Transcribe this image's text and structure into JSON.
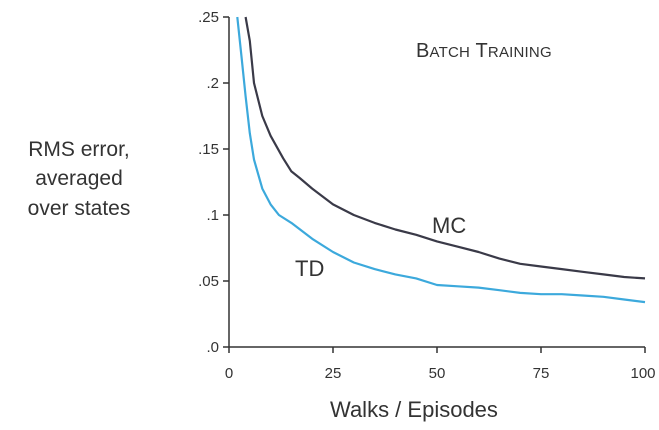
{
  "chart_data": {
    "type": "line",
    "title": "BATCH TRAINING",
    "xlabel": "Walks / Episodes",
    "ylabel_lines": [
      "RMS error,",
      "averaged",
      "over states"
    ],
    "xlim": [
      0,
      100
    ],
    "ylim": [
      0,
      0.25
    ],
    "xticks": [
      0,
      25,
      50,
      75,
      100
    ],
    "xtick_labels": [
      "0",
      "25",
      "50",
      "75",
      "100"
    ],
    "yticks": [
      0,
      0.05,
      0.1,
      0.15,
      0.2,
      0.25
    ],
    "ytick_labels": [
      ".0",
      ".05",
      ".1",
      ".15",
      ".2",
      ".25"
    ],
    "grid": false,
    "legend": "none (series labeled directly on chart)",
    "series": [
      {
        "name": "MC",
        "color": "#3a3a48",
        "x": [
          4,
          5,
          6,
          8,
          10,
          13,
          15,
          17,
          20,
          25,
          30,
          35,
          40,
          45,
          50,
          55,
          60,
          65,
          70,
          75,
          80,
          85,
          90,
          95,
          100
        ],
        "y": [
          0.25,
          0.232,
          0.2,
          0.175,
          0.16,
          0.143,
          0.133,
          0.128,
          0.12,
          0.108,
          0.1,
          0.094,
          0.089,
          0.085,
          0.08,
          0.076,
          0.072,
          0.067,
          0.063,
          0.061,
          0.059,
          0.057,
          0.055,
          0.053,
          0.052
        ]
      },
      {
        "name": "TD",
        "color": "#3ca9dc",
        "x": [
          2,
          3,
          4,
          5,
          6,
          8,
          10,
          12,
          15,
          20,
          25,
          30,
          35,
          40,
          45,
          50,
          55,
          60,
          65,
          70,
          75,
          80,
          85,
          90,
          95,
          100
        ],
        "y": [
          0.25,
          0.22,
          0.19,
          0.162,
          0.142,
          0.12,
          0.108,
          0.1,
          0.094,
          0.082,
          0.072,
          0.064,
          0.059,
          0.055,
          0.052,
          0.047,
          0.046,
          0.045,
          0.043,
          0.041,
          0.04,
          0.04,
          0.039,
          0.038,
          0.036,
          0.034
        ]
      }
    ]
  }
}
